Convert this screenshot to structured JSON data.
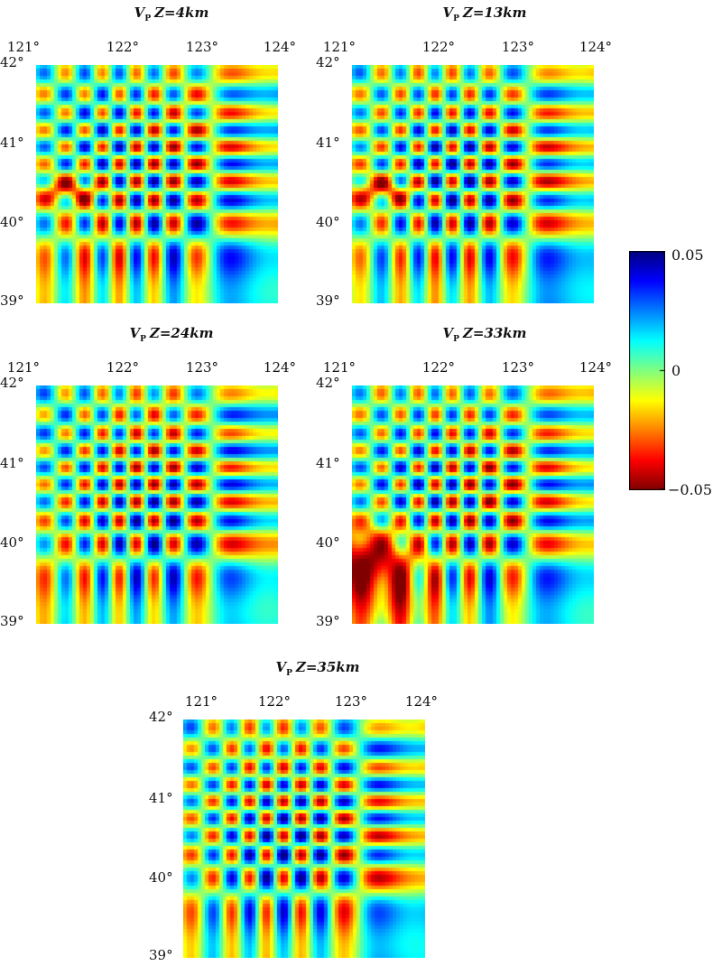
{
  "figures": [
    {
      "id": "p4",
      "vp": "V",
      "sub": "P",
      "depth": "Z=4km",
      "seed": 1
    },
    {
      "id": "p13",
      "vp": "V",
      "sub": "P",
      "depth": "Z=13km",
      "seed": 2
    },
    {
      "id": "p24",
      "vp": "V",
      "sub": "P",
      "depth": "Z=24km",
      "seed": 3
    },
    {
      "id": "p33",
      "vp": "V",
      "sub": "P",
      "depth": "Z=33km",
      "seed": 4
    },
    {
      "id": "p35",
      "vp": "V",
      "sub": "P",
      "depth": "Z=35km",
      "seed": 5
    }
  ],
  "axes": {
    "x_ticks": [
      "121°",
      "122°",
      "123°",
      "124°"
    ],
    "y_ticks": [
      "42°",
      "41°",
      "40°",
      "39°"
    ]
  },
  "colorbar": {
    "max_label": "0.05",
    "mid_label": "0",
    "min_label": "−0.05"
  },
  "chart_data": {
    "type": "heatmap",
    "description_values": "checkerboard resolution test anomalies",
    "x_range": [
      121,
      124
    ],
    "y_range": [
      39,
      42
    ],
    "z_range": [
      -0.05,
      0.05
    ],
    "colormap": "jet"
  }
}
